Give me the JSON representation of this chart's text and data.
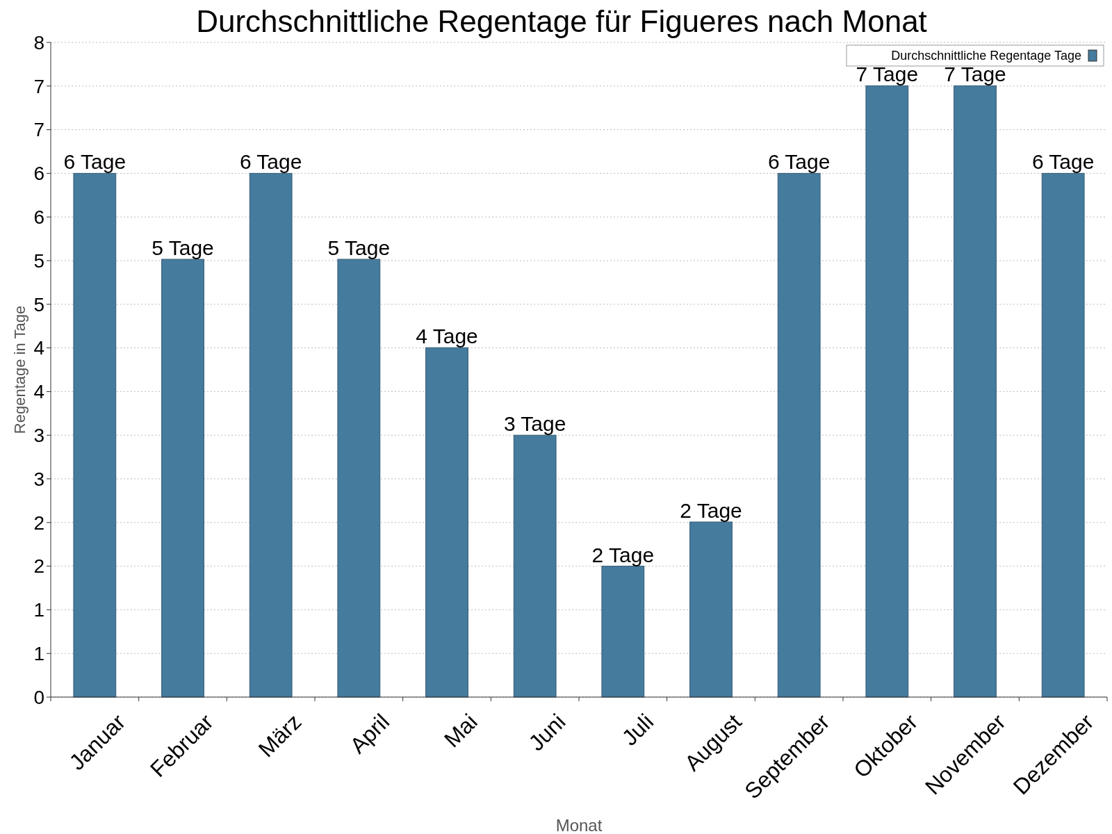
{
  "chart_data": {
    "type": "bar",
    "title": "Durchschnittliche Regentage für Figueres nach Monat",
    "xlabel": "Monat",
    "ylabel": "Regentage in Tage",
    "categories": [
      "Januar",
      "Februar",
      "März",
      "April",
      "Mai",
      "Juni",
      "Juli",
      "August",
      "September",
      "Oktober",
      "November",
      "Dezember"
    ],
    "series": [
      {
        "name": "Durchschnittliche Regentage Tage",
        "color": "#457b9d",
        "values": [
          6.4,
          5.35,
          6.4,
          5.35,
          4.27,
          3.2,
          1.6,
          2.14,
          6.4,
          7.47,
          7.47,
          6.4
        ],
        "value_labels": [
          "6 Tage",
          "5 Tage",
          "6 Tage",
          "5 Tage",
          "4 Tage",
          "3 Tage",
          "2 Tage",
          "2 Tage",
          "6 Tage",
          "7 Tage",
          "7 Tage",
          "6 Tage"
        ]
      }
    ],
    "ylim": [
      0,
      8
    ],
    "yticks": [
      0,
      {
        "value": 0.533,
        "label": "1"
      },
      {
        "value": 1.067,
        "label": "1"
      },
      {
        "value": 1.6,
        "label": "2"
      },
      {
        "value": 2.133,
        "label": "2"
      },
      {
        "value": 2.667,
        "label": "3"
      },
      {
        "value": 3.2,
        "label": "3"
      },
      {
        "value": 3.733,
        "label": "4"
      },
      {
        "value": 4.267,
        "label": "4"
      },
      {
        "value": 4.8,
        "label": "5"
      },
      {
        "value": 5.333,
        "label": "5"
      },
      {
        "value": 5.867,
        "label": "6"
      },
      {
        "value": 6.4,
        "label": "6"
      },
      {
        "value": 6.933,
        "label": "7"
      },
      {
        "value": 7.467,
        "label": "7"
      },
      8
    ],
    "grid": "y",
    "legend": "top right"
  }
}
